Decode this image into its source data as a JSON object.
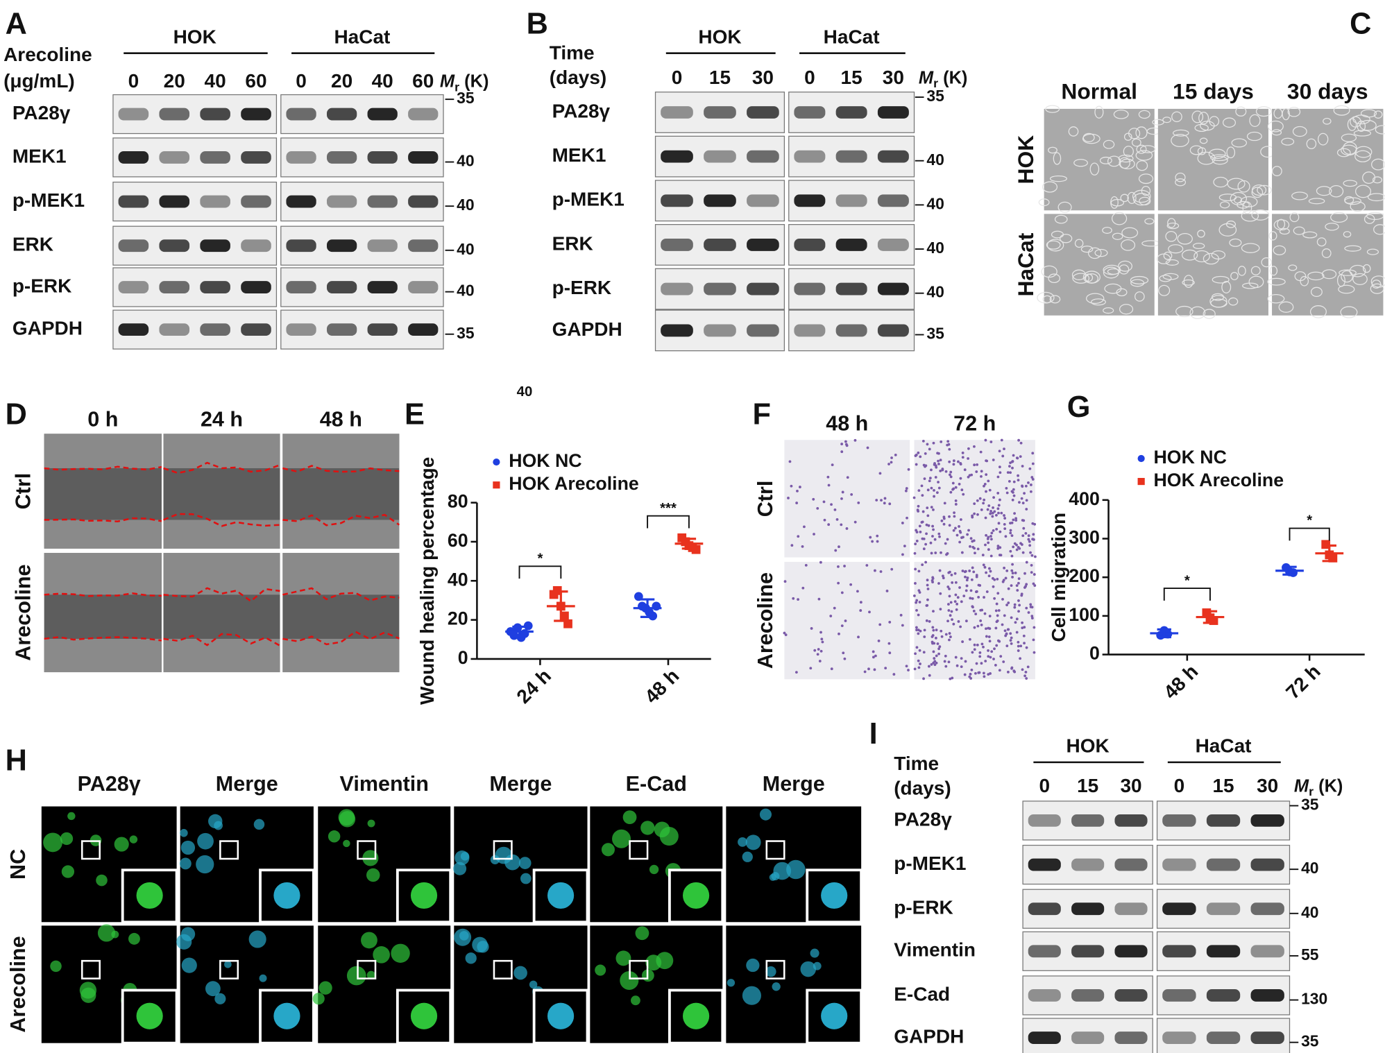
{
  "panels": {
    "A": {
      "label": "A",
      "treatment": [
        "Arecoline",
        "(μg/mL)"
      ],
      "groups": [
        {
          "name": "HOK",
          "lanes": [
            0,
            20,
            40,
            60
          ]
        },
        {
          "name": "HaCat",
          "lanes": [
            0,
            20,
            40,
            60
          ]
        }
      ],
      "mr": {
        "symbol": "M",
        "subscript": "r",
        "unit": "(K)"
      },
      "rows": [
        {
          "protein": "PA28γ",
          "marker": 35
        },
        {
          "protein": "MEK1",
          "marker": 40
        },
        {
          "protein": "p-MEK1",
          "marker": 40
        },
        {
          "protein": "ERK",
          "marker": 40
        },
        {
          "protein": "p-ERK",
          "marker": 40
        },
        {
          "protein": "GAPDH",
          "marker": 35
        }
      ]
    },
    "B": {
      "label": "B",
      "treatment": [
        "Time",
        "(days)"
      ],
      "groups": [
        {
          "name": "HOK",
          "lanes": [
            0,
            15,
            30
          ]
        },
        {
          "name": "HaCat",
          "lanes": [
            0,
            15,
            30
          ]
        }
      ],
      "mr": {
        "symbol": "M",
        "subscript": "r",
        "unit": "(K)"
      },
      "rows": [
        {
          "protein": "PA28γ",
          "marker": 35
        },
        {
          "protein": "MEK1",
          "marker": 40
        },
        {
          "protein": "p-MEK1",
          "marker": 40
        },
        {
          "protein": "ERK",
          "marker": 40
        },
        {
          "protein": "p-ERK",
          "marker": 40
        },
        {
          "protein": "GAPDH",
          "marker": 35
        }
      ]
    },
    "C": {
      "label": "C",
      "columns": [
        "Normal",
        "15 days",
        "30 days"
      ],
      "rows": [
        "HOK",
        "HaCat"
      ]
    },
    "D": {
      "label": "D",
      "columns": [
        "0 h",
        "24 h",
        "48 h"
      ],
      "rows": [
        "Ctrl",
        "Arecoline"
      ]
    },
    "E": {
      "label": "E",
      "type": "dot-plot",
      "stray_text": "40",
      "ylabel": "Wound healing percentage",
      "categories": [
        "24 h",
        "48 h"
      ],
      "ylim": [
        0,
        80
      ],
      "yticks": [
        0,
        20,
        40,
        60,
        80
      ],
      "series": [
        {
          "name": "HOK NC",
          "color": "#1f3fe0",
          "values": [
            14,
            26
          ],
          "errors": [
            2.5,
            4.5
          ],
          "points": [
            [
              14,
              12,
              16,
              11,
              13,
              17
            ],
            [
              32,
              27,
              26,
              24,
              22,
              27
            ]
          ]
        },
        {
          "name": "HOK Arecoline",
          "color": "#e8321e",
          "values": [
            27,
            59
          ],
          "errors": [
            7.5,
            2.5
          ],
          "points": [
            [
              33,
              35,
              27,
              22,
              18
            ],
            [
              62,
              60,
              58,
              57,
              56
            ]
          ]
        }
      ],
      "significance": [
        "*",
        "***"
      ]
    },
    "F": {
      "label": "F",
      "columns": [
        "48 h",
        "72 h"
      ],
      "rows": [
        "Ctrl",
        "Arecoline"
      ]
    },
    "G": {
      "label": "G",
      "type": "dot-plot",
      "ylabel": "Cell migration",
      "categories": [
        "48 h",
        "72 h"
      ],
      "ylim": [
        0,
        400
      ],
      "yticks": [
        0,
        100,
        200,
        300,
        400
      ],
      "series": [
        {
          "name": "HOK NC",
          "color": "#1f3fe0",
          "values": [
            55,
            217
          ],
          "errors": [
            10,
            10
          ],
          "points": [
            [
              50,
              62,
              53
            ],
            [
              225,
              214,
              212
            ]
          ]
        },
        {
          "name": "HOK Arecoline",
          "color": "#e8321e",
          "values": [
            97,
            262
          ],
          "errors": [
            15,
            20
          ],
          "points": [
            [
              108,
              95,
              88
            ],
            [
              285,
              258,
              250
            ]
          ]
        }
      ],
      "significance": [
        "*",
        "*"
      ]
    },
    "H": {
      "label": "H",
      "columns": [
        "PA28γ",
        "Merge",
        "Vimentin",
        "Merge",
        "E-Cad",
        "Merge"
      ],
      "rows": [
        "NC",
        "Arecoline"
      ]
    },
    "I": {
      "label": "I",
      "treatment": [
        "Time",
        "(days)"
      ],
      "groups": [
        {
          "name": "HOK",
          "lanes": [
            0,
            15,
            30
          ]
        },
        {
          "name": "HaCat",
          "lanes": [
            0,
            15,
            30
          ]
        }
      ],
      "mr": {
        "symbol": "M",
        "subscript": "r",
        "unit": "(K)"
      },
      "rows": [
        {
          "protein": "PA28γ",
          "marker": 35
        },
        {
          "protein": "p-MEK1",
          "marker": 40
        },
        {
          "protein": "p-ERK",
          "marker": 40
        },
        {
          "protein": "Vimentin",
          "marker": 55
        },
        {
          "protein": "E-Cad",
          "marker": 130
        },
        {
          "protein": "GAPDH",
          "marker": 35
        }
      ]
    }
  }
}
